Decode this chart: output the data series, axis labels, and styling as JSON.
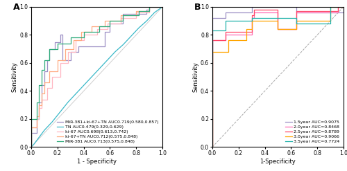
{
  "panel_A": {
    "title": "A",
    "xlabel": "1 - Specificity",
    "ylabel": "Sensitivity",
    "curves": [
      {
        "label": "MiR-381+ki-67+TN AUC0.719(0.580,0.857)",
        "color": "#9B8EC4",
        "fpr": [
          0.0,
          0.0,
          0.04,
          0.04,
          0.06,
          0.06,
          0.08,
          0.08,
          0.1,
          0.1,
          0.12,
          0.12,
          0.14,
          0.14,
          0.18,
          0.18,
          0.22,
          0.22,
          0.24,
          0.24,
          0.3,
          0.3,
          0.36,
          0.36,
          0.56,
          0.56,
          0.6,
          0.6,
          0.7,
          0.7,
          0.88,
          0.88,
          0.9,
          0.9,
          1.0
        ],
        "tpr": [
          0.0,
          0.1,
          0.1,
          0.2,
          0.2,
          0.32,
          0.32,
          0.44,
          0.44,
          0.54,
          0.54,
          0.62,
          0.62,
          0.7,
          0.7,
          0.75,
          0.75,
          0.8,
          0.8,
          0.62,
          0.62,
          0.68,
          0.68,
          0.72,
          0.72,
          0.82,
          0.82,
          0.88,
          0.88,
          0.95,
          0.95,
          0.98,
          0.98,
          1.0,
          1.0
        ]
      },
      {
        "label": "TN AUC0.479(0.329,0.629)",
        "color": "#39B8C8",
        "fpr": [
          0.0,
          0.02,
          0.06,
          0.1,
          0.16,
          0.22,
          0.28,
          0.34,
          0.4,
          0.46,
          0.52,
          0.58,
          0.64,
          0.7,
          0.76,
          0.82,
          0.88,
          0.94,
          1.0
        ],
        "tpr": [
          0.0,
          0.02,
          0.07,
          0.12,
          0.18,
          0.25,
          0.32,
          0.38,
          0.44,
          0.5,
          0.56,
          0.62,
          0.68,
          0.73,
          0.79,
          0.85,
          0.9,
          0.96,
          1.0
        ]
      },
      {
        "label": "ki-67 AUC0.698(0.613,0.742)",
        "color": "#FFB6C1",
        "fpr": [
          0.0,
          0.0,
          0.04,
          0.04,
          0.06,
          0.06,
          0.08,
          0.08,
          0.12,
          0.12,
          0.16,
          0.16,
          0.22,
          0.22,
          0.28,
          0.28,
          0.34,
          0.34,
          0.4,
          0.4,
          0.5,
          0.5,
          0.58,
          0.58,
          0.68,
          0.68,
          0.8,
          0.8,
          0.9,
          0.9,
          1.0
        ],
        "tpr": [
          0.0,
          0.14,
          0.14,
          0.2,
          0.2,
          0.28,
          0.28,
          0.34,
          0.34,
          0.42,
          0.42,
          0.5,
          0.5,
          0.6,
          0.6,
          0.68,
          0.68,
          0.76,
          0.76,
          0.8,
          0.8,
          0.84,
          0.84,
          0.88,
          0.88,
          0.92,
          0.92,
          0.96,
          0.96,
          1.0,
          1.0
        ]
      },
      {
        "label": "ki-67+TN AUC0.712(0.575,0.848)",
        "color": "#FFAA80",
        "fpr": [
          0.0,
          0.0,
          0.04,
          0.04,
          0.06,
          0.06,
          0.08,
          0.08,
          0.1,
          0.1,
          0.14,
          0.14,
          0.2,
          0.2,
          0.26,
          0.26,
          0.32,
          0.32,
          0.38,
          0.38,
          0.46,
          0.46,
          0.56,
          0.56,
          0.68,
          0.68,
          0.8,
          0.8,
          0.9,
          0.9,
          1.0
        ],
        "tpr": [
          0.0,
          0.14,
          0.14,
          0.22,
          0.22,
          0.3,
          0.3,
          0.38,
          0.38,
          0.46,
          0.46,
          0.54,
          0.54,
          0.62,
          0.62,
          0.7,
          0.7,
          0.76,
          0.76,
          0.82,
          0.82,
          0.86,
          0.86,
          0.9,
          0.9,
          0.94,
          0.94,
          0.97,
          0.97,
          1.0,
          1.0
        ]
      },
      {
        "label": "MiR-381 AUC0.713(0.575,0.848)",
        "color": "#2EAA7A",
        "fpr": [
          0.0,
          0.0,
          0.04,
          0.04,
          0.06,
          0.06,
          0.08,
          0.08,
          0.1,
          0.1,
          0.14,
          0.14,
          0.2,
          0.2,
          0.3,
          0.3,
          0.4,
          0.4,
          0.52,
          0.52,
          0.6,
          0.6,
          0.7,
          0.7,
          0.82,
          0.82,
          0.9,
          0.9,
          1.0
        ],
        "tpr": [
          0.0,
          0.2,
          0.2,
          0.32,
          0.32,
          0.44,
          0.44,
          0.55,
          0.55,
          0.62,
          0.62,
          0.7,
          0.7,
          0.74,
          0.74,
          0.78,
          0.78,
          0.82,
          0.82,
          0.86,
          0.86,
          0.9,
          0.9,
          0.94,
          0.94,
          0.97,
          0.97,
          1.0,
          1.0
        ]
      }
    ],
    "diag_color": "#BBBBBB"
  },
  "panel_B": {
    "title": "B",
    "xlabel": "1-Specificity",
    "ylabel": "Sensitivity",
    "curves": [
      {
        "label": "1.5year AUC=0.9075",
        "color": "#9B8EC4",
        "fpr": [
          0.0,
          0.0,
          0.1,
          0.1,
          0.3,
          0.3,
          0.64,
          0.64,
          1.0,
          1.0
        ],
        "tpr": [
          0.0,
          0.92,
          0.92,
          0.96,
          0.96,
          1.0,
          1.0,
          0.96,
          0.96,
          1.0
        ]
      },
      {
        "label": "2.0year AUC=0.8468",
        "color": "#FF69B4",
        "fpr": [
          0.0,
          0.0,
          0.1,
          0.1,
          0.3,
          0.3,
          0.32,
          0.32,
          0.5,
          0.5,
          0.64,
          0.64,
          0.96,
          0.96,
          1.0
        ],
        "tpr": [
          0.0,
          0.76,
          0.76,
          0.8,
          0.8,
          0.92,
          0.92,
          0.96,
          0.96,
          0.84,
          0.84,
          0.96,
          0.96,
          1.0,
          1.0
        ]
      },
      {
        "label": "2.5year AUC=0.8789",
        "color": "#FF4466",
        "fpr": [
          0.0,
          0.0,
          0.1,
          0.1,
          0.3,
          0.3,
          0.32,
          0.32,
          0.5,
          0.5,
          0.64,
          0.64,
          0.96,
          0.96,
          1.0
        ],
        "tpr": [
          0.0,
          0.76,
          0.76,
          0.82,
          0.82,
          0.94,
          0.94,
          0.98,
          0.98,
          0.84,
          0.84,
          0.97,
          0.97,
          1.0,
          1.0
        ]
      },
      {
        "label": "3.0year AUC=0.9066",
        "color": "#FFA500",
        "fpr": [
          0.0,
          0.0,
          0.12,
          0.12,
          0.26,
          0.26,
          0.3,
          0.3,
          0.5,
          0.5,
          0.64,
          0.64,
          0.9,
          0.9,
          1.0
        ],
        "tpr": [
          0.0,
          0.68,
          0.68,
          0.76,
          0.76,
          0.84,
          0.84,
          0.9,
          0.9,
          0.84,
          0.84,
          0.9,
          0.9,
          1.0,
          1.0
        ]
      },
      {
        "label": "3.5year AUC=0.7724",
        "color": "#20B2AA",
        "fpr": [
          0.0,
          0.0,
          0.1,
          0.1,
          0.3,
          0.3,
          0.64,
          0.64,
          0.9,
          0.9,
          1.0
        ],
        "tpr": [
          0.0,
          0.83,
          0.83,
          0.9,
          0.9,
          0.92,
          0.92,
          0.88,
          0.88,
          1.0,
          1.0
        ]
      }
    ],
    "diag_color": "#999999"
  },
  "fig_bg": "#FFFFFF",
  "font_size": 6,
  "legend_font_size": 4.5,
  "tick_font_size": 5.5
}
